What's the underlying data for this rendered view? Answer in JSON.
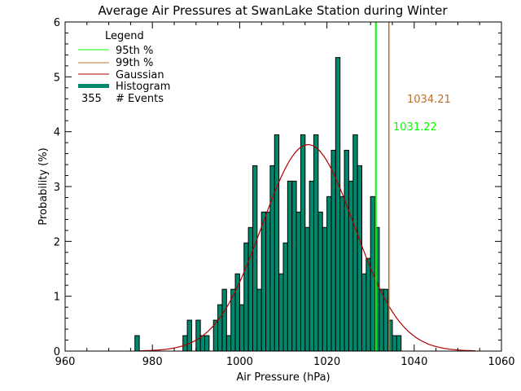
{
  "chart_data": {
    "type": "bar",
    "title": "Average Air Pressures at SwanLake Station during Winter",
    "xlabel": "Air Pressure (hPa)",
    "ylabel": "Probability (%)",
    "xlim": [
      960,
      1060
    ],
    "ylim": [
      0,
      6
    ],
    "xticks": [
      "960",
      "980",
      "1000",
      "1020",
      "1040",
      "1060"
    ],
    "yticks": [
      "0",
      "1",
      "2",
      "3",
      "4",
      "5",
      "6"
    ],
    "bin_width": 1,
    "bins": [
      976,
      987,
      988,
      990,
      991,
      992,
      994,
      995,
      996,
      997,
      998,
      999,
      1000,
      1001,
      1002,
      1003,
      1004,
      1005,
      1006,
      1007,
      1008,
      1009,
      1010,
      1011,
      1012,
      1013,
      1014,
      1015,
      1016,
      1017,
      1018,
      1019,
      1020,
      1021,
      1022,
      1023,
      1024,
      1025,
      1026,
      1027,
      1028,
      1029,
      1030,
      1031,
      1032,
      1033,
      1034,
      1035,
      1036
    ],
    "counts": [
      1,
      1,
      2,
      2,
      1,
      1,
      2,
      3,
      4,
      1,
      4,
      5,
      3,
      7,
      8,
      12,
      4,
      9,
      9,
      12,
      14,
      5,
      7,
      11,
      11,
      9,
      14,
      8,
      11,
      14,
      9,
      8,
      10,
      13,
      19,
      10,
      13,
      11,
      14,
      12,
      5,
      6,
      10,
      8,
      4,
      4,
      2,
      1,
      1
    ],
    "total_events": 355,
    "gaussian": {
      "mean": 1015.7,
      "sigma": 10.6,
      "range": [
        977,
        1054
      ]
    },
    "percentile_95": {
      "value": 1031.22,
      "label": "1031.22"
    },
    "percentile_99": {
      "value": 1034.21,
      "label": "1034.21"
    },
    "legend": {
      "title": "Legend",
      "items": [
        "95th %",
        "99th %",
        "Gaussian",
        "Histogram"
      ],
      "events_count": "355",
      "events_label": "# Events",
      "placement": "top-left"
    },
    "colors": {
      "p95": "#00ff00",
      "p99": "#b8722c",
      "gaussian": "#b00000",
      "histogram": "#00876c"
    }
  }
}
